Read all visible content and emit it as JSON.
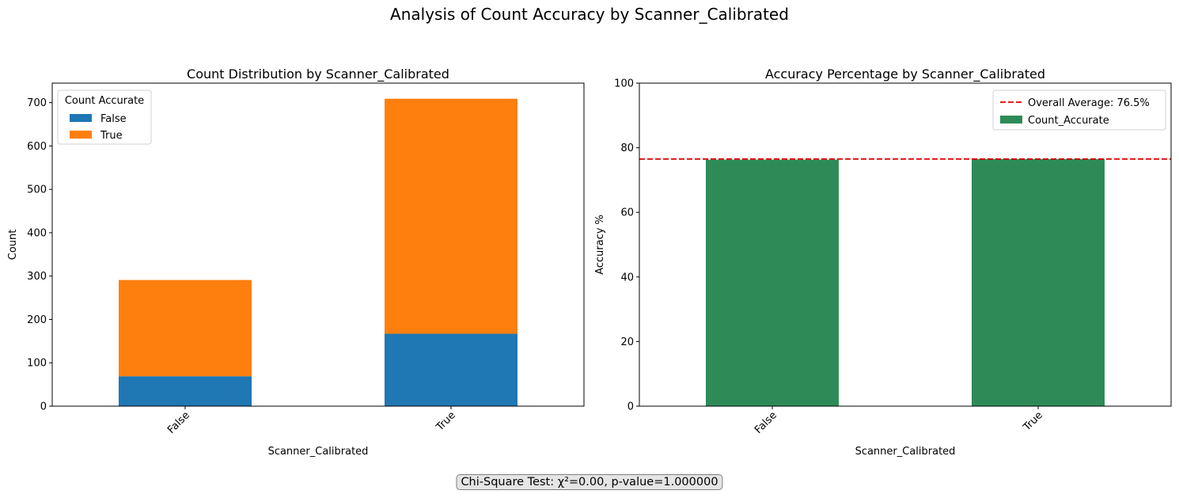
{
  "figure": {
    "title": "Analysis of Count Accuracy by Scanner_Calibrated",
    "footnote": "Chi-Square Test: χ²=0.00, p-value=1.000000"
  },
  "colors": {
    "false": "#1f77b4",
    "true": "#ff7f0e",
    "accuracy": "#2e8b57",
    "average_line": "#e00000"
  },
  "chart_data": [
    {
      "type": "bar",
      "stacked": true,
      "title": "Count Distribution by Scanner_Calibrated",
      "xlabel": "Scanner_Calibrated",
      "ylabel": "Count",
      "categories": [
        "False",
        "True"
      ],
      "series": [
        {
          "name": "False",
          "values": [
            69,
            167
          ]
        },
        {
          "name": "True",
          "values": [
            222,
            542
          ]
        }
      ],
      "ylim": [
        0,
        745
      ],
      "yticks": [
        0,
        100,
        200,
        300,
        400,
        500,
        600,
        700
      ],
      "legend": {
        "title": "Count Accurate",
        "placement": "top-left"
      },
      "grid": false
    },
    {
      "type": "bar",
      "title": "Accuracy Percentage by Scanner_Calibrated",
      "xlabel": "Scanner_Calibrated",
      "ylabel": "Accuracy %",
      "categories": [
        "False",
        "True"
      ],
      "series": [
        {
          "name": "Count_Accurate",
          "values": [
            76.3,
            76.5
          ]
        }
      ],
      "reference_line": {
        "name": "Overall Average: 76.5%",
        "value": 76.5
      },
      "ylim": [
        0,
        100
      ],
      "yticks": [
        0,
        20,
        40,
        60,
        80,
        100
      ],
      "legend": {
        "placement": "top-right"
      },
      "grid": false
    }
  ]
}
